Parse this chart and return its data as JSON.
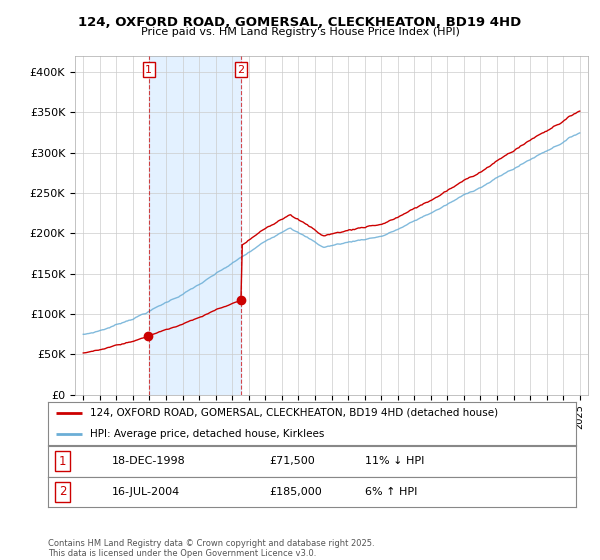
{
  "title": "124, OXFORD ROAD, GOMERSAL, CLECKHEATON, BD19 4HD",
  "subtitle": "Price paid vs. HM Land Registry's House Price Index (HPI)",
  "background_color": "#ffffff",
  "plot_bg_color": "#ffffff",
  "grid_color": "#cccccc",
  "red_color": "#cc0000",
  "blue_color": "#6baed6",
  "shade_color": "#ddeeff",
  "sale1_date": "18-DEC-1998",
  "sale1_price": 71500,
  "sale1_year": 1998.96,
  "sale1_hpi": "11% ↓ HPI",
  "sale2_date": "16-JUL-2004",
  "sale2_price": 185000,
  "sale2_year": 2004.54,
  "sale2_hpi": "6% ↑ HPI",
  "ylim_min": 0,
  "ylim_max": 420000,
  "xlim_min": 1994.5,
  "xlim_max": 2025.5,
  "legend_label_red": "124, OXFORD ROAD, GOMERSAL, CLECKHEATON, BD19 4HD (detached house)",
  "legend_label_blue": "HPI: Average price, detached house, Kirklees",
  "footer": "Contains HM Land Registry data © Crown copyright and database right 2025.\nThis data is licensed under the Open Government Licence v3.0."
}
